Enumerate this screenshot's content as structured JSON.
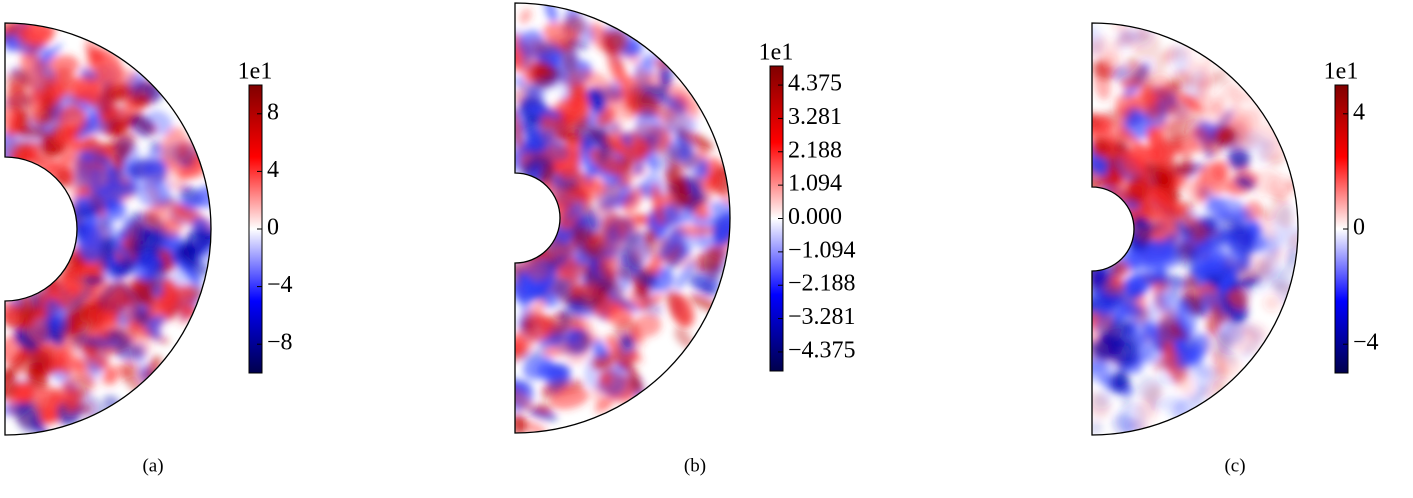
{
  "chart_data": [
    {
      "type": "heatmap",
      "caption": "(a)",
      "scale_label": "1e1",
      "clim": [
        -10,
        10
      ],
      "cticks": [
        {
          "value": 8,
          "label": "8"
        },
        {
          "value": 4,
          "label": "4"
        },
        0,
        {
          "value": -4,
          "label": "−4"
        },
        {
          "value": -8,
          "label": "−8"
        }
      ]
    },
    {
      "type": "heatmap",
      "caption": "(b)",
      "scale_label": "1e1",
      "clim": [
        -5,
        5
      ],
      "cticks": [
        4.375,
        3.281,
        2.188,
        1.094,
        {
          "value": 0,
          "label": "0.000"
        },
        {
          "value": -1.094,
          "label": "−1.094"
        },
        {
          "value": -2.188,
          "label": "−2.188"
        },
        {
          "value": -3.281,
          "label": "−3.281"
        },
        {
          "value": -4.375,
          "label": "−4.375"
        }
      ]
    },
    {
      "type": "heatmap",
      "caption": "(c)",
      "scale_label": "1e1",
      "clim": [
        -5,
        5
      ],
      "cticks": [
        {
          "value": 4,
          "label": "4"
        },
        0,
        {
          "value": -4,
          "label": "−4"
        }
      ]
    }
  ]
}
